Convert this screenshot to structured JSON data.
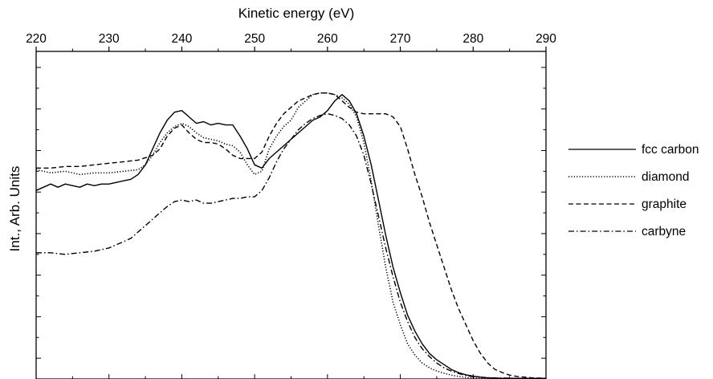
{
  "chart_data": {
    "type": "line",
    "title": "",
    "xlabel": "Kinetic energy (eV)",
    "ylabel": "Int., Arb. Units",
    "xlim": [
      220,
      290
    ],
    "ylim": [
      0,
      1
    ],
    "x_axis_position": "top",
    "x_ticks": [
      220,
      230,
      240,
      250,
      260,
      270,
      280,
      290
    ],
    "x_tick_labels": [
      "220",
      "230",
      "240",
      "250",
      "260",
      "270",
      "280",
      "290"
    ],
    "y_tick_labels_shown": false,
    "grid": false,
    "legend_position": "right",
    "legend": [
      "fcc carbon",
      "diamond",
      "graphite",
      "carbyne"
    ],
    "series": [
      {
        "name": "fcc carbon",
        "style": "solid",
        "x": [
          220,
          221,
          222,
          223,
          224,
          225,
          226,
          227,
          228,
          229,
          230,
          231,
          232,
          233,
          234,
          235,
          236,
          237,
          238,
          239,
          240,
          241,
          242,
          243,
          244,
          245,
          246,
          247,
          248,
          249,
          250,
          251,
          252,
          253,
          254,
          255,
          256,
          257,
          258,
          259,
          260,
          261,
          262,
          263,
          264,
          265,
          266,
          267,
          268,
          269,
          270,
          271,
          272,
          273,
          274,
          275,
          276,
          277,
          278,
          279,
          280,
          281,
          282,
          283,
          284,
          285,
          286,
          287,
          288,
          289,
          290
        ],
        "y": [
          0.59,
          0.6,
          0.61,
          0.6,
          0.61,
          0.605,
          0.6,
          0.61,
          0.605,
          0.61,
          0.61,
          0.615,
          0.62,
          0.625,
          0.64,
          0.67,
          0.72,
          0.77,
          0.81,
          0.835,
          0.84,
          0.82,
          0.8,
          0.805,
          0.795,
          0.8,
          0.795,
          0.795,
          0.76,
          0.72,
          0.67,
          0.66,
          0.69,
          0.71,
          0.73,
          0.75,
          0.77,
          0.79,
          0.81,
          0.82,
          0.84,
          0.87,
          0.89,
          0.87,
          0.83,
          0.76,
          0.67,
          0.56,
          0.45,
          0.35,
          0.27,
          0.2,
          0.15,
          0.11,
          0.08,
          0.06,
          0.045,
          0.03,
          0.02,
          0.013,
          0.009,
          0.006,
          0.004,
          0.003,
          0.002,
          0.002,
          0.002,
          0.002,
          0.002,
          0.002,
          0.002
        ]
      },
      {
        "name": "diamond",
        "style": "dotted",
        "x": [
          220,
          222,
          224,
          226,
          228,
          230,
          232,
          234,
          235,
          236,
          237,
          238,
          239,
          240,
          241,
          242,
          243,
          244,
          245,
          246,
          247,
          248,
          249,
          250,
          251,
          252,
          253,
          254,
          255,
          256,
          257,
          258,
          259,
          260,
          261,
          262,
          263,
          264,
          265,
          266,
          267,
          268,
          269,
          270,
          271,
          272,
          273,
          274,
          275,
          276,
          277,
          278,
          279,
          280,
          282,
          284,
          286,
          288,
          290
        ],
        "y": [
          0.655,
          0.645,
          0.65,
          0.64,
          0.645,
          0.645,
          0.65,
          0.655,
          0.67,
          0.7,
          0.74,
          0.77,
          0.79,
          0.8,
          0.79,
          0.77,
          0.755,
          0.75,
          0.745,
          0.735,
          0.73,
          0.71,
          0.67,
          0.64,
          0.65,
          0.72,
          0.76,
          0.79,
          0.81,
          0.85,
          0.87,
          0.89,
          0.895,
          0.895,
          0.89,
          0.88,
          0.86,
          0.82,
          0.74,
          0.62,
          0.48,
          0.35,
          0.24,
          0.17,
          0.11,
          0.075,
          0.05,
          0.035,
          0.025,
          0.018,
          0.012,
          0.008,
          0.005,
          0.003,
          0.002,
          0.002,
          0.002,
          0.002,
          0.002
        ]
      },
      {
        "name": "graphite",
        "style": "dashed",
        "x": [
          220,
          222,
          224,
          226,
          228,
          230,
          232,
          234,
          236,
          237,
          238,
          239,
          240,
          241,
          242,
          243,
          244,
          245,
          246,
          247,
          248,
          249,
          250,
          251,
          252,
          253,
          254,
          255,
          256,
          257,
          258,
          259,
          260,
          261,
          262,
          263,
          264,
          265,
          266,
          267,
          268,
          269,
          270,
          271,
          272,
          273,
          274,
          275,
          276,
          277,
          278,
          279,
          280,
          281,
          282,
          283,
          284,
          285,
          286,
          288,
          290
        ],
        "y": [
          0.66,
          0.66,
          0.665,
          0.665,
          0.67,
          0.675,
          0.68,
          0.685,
          0.7,
          0.72,
          0.76,
          0.785,
          0.795,
          0.77,
          0.75,
          0.74,
          0.74,
          0.735,
          0.72,
          0.7,
          0.69,
          0.69,
          0.69,
          0.71,
          0.76,
          0.8,
          0.83,
          0.85,
          0.87,
          0.88,
          0.89,
          0.895,
          0.895,
          0.89,
          0.87,
          0.85,
          0.835,
          0.83,
          0.83,
          0.83,
          0.83,
          0.82,
          0.79,
          0.72,
          0.64,
          0.57,
          0.49,
          0.42,
          0.35,
          0.28,
          0.22,
          0.17,
          0.12,
          0.08,
          0.05,
          0.03,
          0.02,
          0.012,
          0.008,
          0.004,
          0.002
        ]
      },
      {
        "name": "carbyne",
        "style": "dash-dot",
        "x": [
          220,
          222,
          224,
          226,
          228,
          230,
          231,
          232,
          233,
          234,
          235,
          236,
          237,
          238,
          239,
          240,
          241,
          242,
          243,
          244,
          245,
          246,
          247,
          248,
          249,
          250,
          251,
          252,
          253,
          254,
          255,
          256,
          257,
          258,
          259,
          260,
          261,
          262,
          263,
          264,
          265,
          266,
          267,
          268,
          269,
          270,
          271,
          272,
          273,
          274,
          275,
          276,
          277,
          278,
          279,
          280,
          282,
          284,
          286,
          288,
          290
        ],
        "y": [
          0.395,
          0.395,
          0.39,
          0.395,
          0.4,
          0.41,
          0.42,
          0.43,
          0.44,
          0.46,
          0.48,
          0.5,
          0.52,
          0.54,
          0.555,
          0.56,
          0.555,
          0.56,
          0.55,
          0.55,
          0.555,
          0.56,
          0.565,
          0.565,
          0.57,
          0.57,
          0.59,
          0.63,
          0.68,
          0.72,
          0.75,
          0.78,
          0.8,
          0.815,
          0.825,
          0.83,
          0.825,
          0.815,
          0.795,
          0.76,
          0.7,
          0.61,
          0.51,
          0.41,
          0.32,
          0.24,
          0.18,
          0.13,
          0.095,
          0.07,
          0.05,
          0.035,
          0.025,
          0.017,
          0.011,
          0.007,
          0.004,
          0.003,
          0.002,
          0.002,
          0.002
        ]
      }
    ]
  }
}
